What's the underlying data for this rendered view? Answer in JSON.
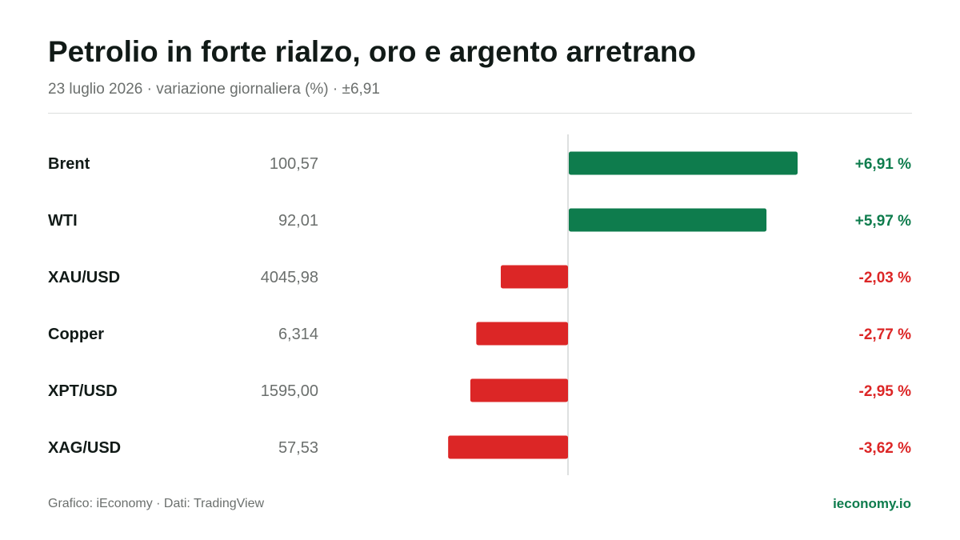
{
  "header": {
    "title": "Petrolio in forte rialzo, oro e argento arretrano",
    "subtitle": "23 luglio 2026 · variazione giornaliera (%) · ±6,91"
  },
  "footer": {
    "source": "Grafico: iEconomy · Dati: TradingView",
    "brand": "ieconomy.io"
  },
  "colors": {
    "positive": "#0e7c4d",
    "negative": "#dc2626",
    "text": "#111a17",
    "muted": "#6b6f6d",
    "axis": "#d4d6d5",
    "brand": "#0e7c4d"
  },
  "chart_data": {
    "type": "bar",
    "orientation": "horizontal",
    "title": "Petrolio in forte rialzo, oro e argento arretrano",
    "subtitle": "23 luglio 2026 · variazione giornaliera (%) · ±6,91",
    "xlim": [
      -6.91,
      6.91
    ],
    "grid": false,
    "categories": [
      "Brent",
      "WTI",
      "XAU/USD",
      "Copper",
      "XPT/USD",
      "XAG/USD"
    ],
    "prices": [
      "100,57",
      "92,01",
      "4045,98",
      "6,314",
      "1595,00",
      "57,53"
    ],
    "values": [
      6.91,
      5.97,
      -2.03,
      -2.77,
      -2.95,
      -3.62
    ],
    "value_labels": [
      "+6,91 %",
      "+5,97 %",
      "-2,03 %",
      "-2,77 %",
      "-2,95 %",
      "-3,62 %"
    ]
  }
}
